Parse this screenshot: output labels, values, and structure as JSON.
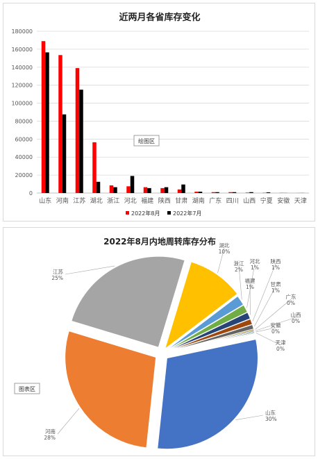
{
  "chart_data": [
    {
      "type": "bar",
      "title": "近两月各省库存变化",
      "categories": [
        "山东",
        "河南",
        "江苏",
        "湖北",
        "浙江",
        "河北",
        "福建",
        "陕西",
        "甘肃",
        "湖南",
        "广东",
        "四川",
        "山西",
        "宁夏",
        "安徽",
        "天津"
      ],
      "series": [
        {
          "name": "2022年8月",
          "color": "#ff0000",
          "values": [
            169000,
            153500,
            139000,
            56500,
            8500,
            7500,
            6500,
            5500,
            4000,
            1500,
            1000,
            1000,
            500,
            300,
            200,
            100
          ]
        },
        {
          "name": "2022年7月",
          "color": "#000000",
          "values": [
            156500,
            87500,
            115000,
            12500,
            6500,
            19000,
            5500,
            6500,
            9500,
            1500,
            1000,
            1000,
            1000,
            800,
            100,
            100
          ]
        }
      ],
      "ylim": [
        0,
        180000
      ],
      "yticks": [
        0,
        20000,
        40000,
        60000,
        80000,
        100000,
        120000,
        140000,
        160000,
        180000
      ],
      "legend": "bottom",
      "annotation": "绘图区"
    },
    {
      "type": "pie",
      "title": "2022年8月内地周转库存分布",
      "annotation": "图表区",
      "slices": [
        {
          "name": "山东",
          "label": "30%",
          "value": 30.0,
          "color": "#4472c4"
        },
        {
          "name": "河南",
          "label": "28%",
          "value": 28.0,
          "color": "#ed7d31"
        },
        {
          "name": "江苏",
          "label": "25%",
          "value": 25.0,
          "color": "#a5a5a5"
        },
        {
          "name": "湖北",
          "label": "10%",
          "value": 10.0,
          "color": "#ffc000"
        },
        {
          "name": "浙江",
          "label": "2%",
          "value": 1.8,
          "color": "#5b9bd5"
        },
        {
          "name": "河北",
          "label": "1%",
          "value": 1.4,
          "color": "#70ad47"
        },
        {
          "name": "福建",
          "label": "1%",
          "value": 1.2,
          "color": "#264478"
        },
        {
          "name": "陕西",
          "label": "1%",
          "value": 1.0,
          "color": "#9e480e"
        },
        {
          "name": "甘肃",
          "label": "1%",
          "value": 0.8,
          "color": "#636363"
        },
        {
          "name": "广东",
          "label": "0%",
          "value": 0.25,
          "color": "#997300"
        },
        {
          "name": "山西",
          "label": "0%",
          "value": 0.2,
          "color": "#255e91"
        },
        {
          "name": "安徽",
          "label": "0%",
          "value": 0.2,
          "color": "#43682b"
        },
        {
          "name": "天津",
          "label": "0%",
          "value": 0.15,
          "color": "#698ed0"
        }
      ]
    }
  ]
}
